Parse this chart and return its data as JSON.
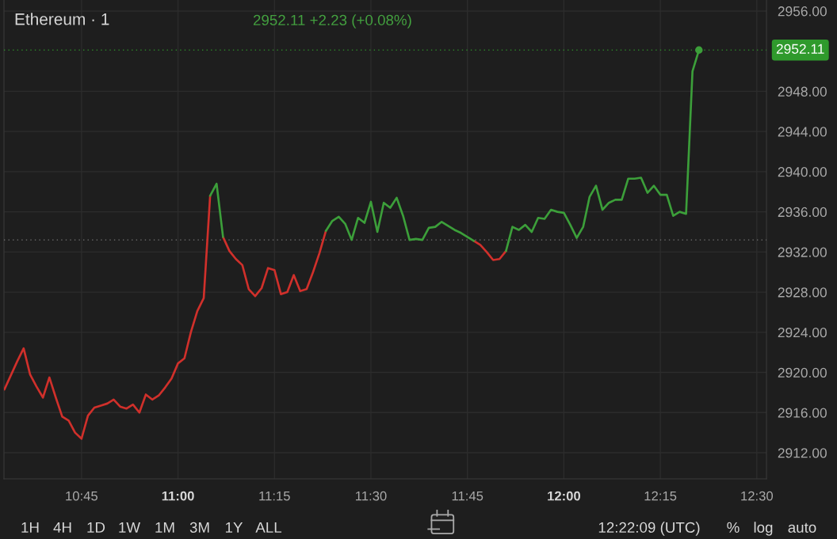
{
  "chart_data": {
    "type": "line",
    "title": "Ethereum · 1",
    "subtitle": "2952.11 +2.23 (+0.08%)",
    "x": [
      10.55,
      10.5667,
      10.5833,
      10.6,
      10.6167,
      10.6333,
      10.65,
      10.6667,
      10.6833,
      10.7,
      10.7167,
      10.7333,
      10.75,
      10.7667,
      10.7833,
      10.8,
      10.8167,
      10.8333,
      10.85,
      10.8667,
      10.8833,
      10.9,
      10.9167,
      10.9333,
      10.95,
      10.9667,
      10.9833,
      11,
      11.0167,
      11.0333,
      11.05,
      11.0667,
      11.0833,
      11.1,
      11.1167,
      11.1333,
      11.15,
      11.1667,
      11.1833,
      11.2,
      11.2167,
      11.2333,
      11.25,
      11.2667,
      11.2833,
      11.3,
      11.3167,
      11.3333,
      11.35,
      11.3667,
      11.3833,
      11.4,
      11.4167,
      11.4333,
      11.45,
      11.4667,
      11.4833,
      11.5,
      11.5167,
      11.5333,
      11.55,
      11.5667,
      11.5833,
      11.6,
      11.6167,
      11.6333,
      11.65,
      11.6667,
      11.6833,
      11.7,
      11.7167,
      11.7333,
      11.75,
      11.7667,
      11.7833,
      11.8,
      11.8167,
      11.8333,
      11.85,
      11.8667,
      11.8833,
      11.9,
      11.9167,
      11.9333,
      11.95,
      11.9667,
      11.9833,
      12,
      12.0167,
      12.0333,
      12.05,
      12.0667,
      12.0833,
      12.1,
      12.1167,
      12.1333,
      12.15,
      12.1667,
      12.1833,
      12.2,
      12.2167,
      12.2333,
      12.25,
      12.2667,
      12.2833,
      12.3,
      12.3167,
      12.3333,
      12.35
    ],
    "series": [
      {
        "color": "#d0302b",
        "values": [
          2918.3,
          2919.7,
          2921.1,
          2922.4,
          2919.8,
          2918.6,
          2917.5,
          2919.5,
          2917.5,
          2915.6,
          2915.2,
          2914.0,
          2913.4,
          2915.7,
          2916.5,
          2916.7,
          2916.9,
          2917.3,
          2916.6,
          2916.4,
          2916.8,
          2916.0,
          2917.8,
          2917.3,
          2917.7,
          2918.5,
          2919.4,
          2920.9,
          2921.4,
          2924.0,
          2926.1,
          2927.4,
          2937.6,
          null,
          2933.5,
          2932.1,
          2931.3,
          2930.7,
          2928.3,
          2927.6,
          2928.4,
          2930.4,
          2930.2,
          2927.8,
          2928.0,
          2929.7,
          2928.1,
          2928.3,
          2930.0,
          2931.9,
          2934.1,
          null,
          null,
          null,
          null,
          null,
          null,
          null,
          null,
          null,
          null,
          null,
          null,
          null,
          null,
          null,
          null,
          null,
          null,
          null,
          null,
          null,
          null,
          2933.1,
          2932.7,
          2932.0,
          2931.2,
          2931.3,
          2932.1,
          null,
          null,
          null,
          null,
          null,
          null,
          null,
          null,
          null,
          null,
          null,
          null,
          null,
          null,
          null,
          null,
          null,
          null,
          null,
          null,
          null,
          null,
          null,
          null,
          null,
          null,
          null,
          null,
          null,
          null
        ]
      },
      {
        "color": "#3c9f3a",
        "values": [
          null,
          null,
          null,
          null,
          null,
          null,
          null,
          null,
          null,
          null,
          null,
          null,
          null,
          null,
          null,
          null,
          null,
          null,
          null,
          null,
          null,
          null,
          null,
          null,
          null,
          null,
          null,
          null,
          null,
          null,
          null,
          null,
          2937.6,
          2938.8,
          2933.5,
          null,
          null,
          null,
          null,
          null,
          null,
          null,
          null,
          null,
          null,
          null,
          null,
          null,
          null,
          null,
          2934.1,
          2935.1,
          2935.5,
          2934.8,
          2933.2,
          2935.4,
          2934.9,
          2937.0,
          2934.0,
          2936.9,
          2936.4,
          2937.4,
          2935.6,
          2933.2,
          2933.3,
          2933.2,
          2934.4,
          2934.5,
          2935.0,
          2934.6,
          2934.2,
          2933.9,
          2933.5,
          2933.1,
          null,
          null,
          null,
          null,
          2932.1,
          2934.5,
          2934.2,
          2934.7,
          2934.0,
          2935.4,
          2935.3,
          2936.2,
          2936.0,
          2935.9,
          2934.7,
          2933.4,
          2934.5,
          2937.5,
          2938.6,
          2936.2,
          2936.9,
          2937.2,
          2937.2,
          2939.3,
          2939.3,
          2939.4,
          2937.9,
          2938.6,
          2937.7,
          2937.7,
          2935.6,
          2936.0,
          2935.8,
          2950.0,
          2952.11
        ]
      },
      {
        "type": "scatter",
        "x": [
          12.35
        ],
        "values": [
          2952.11
        ],
        "color": "#3c9f3a"
      }
    ],
    "xlim": [
      10.549,
      12.525
    ],
    "xticks": [
      {
        "value": 10.75,
        "label": "10:45"
      },
      {
        "value": 11,
        "label": "11:00"
      },
      {
        "value": 11.25,
        "label": "11:15"
      },
      {
        "value": 11.5,
        "label": "11:30"
      },
      {
        "value": 11.75,
        "label": "11:45"
      },
      {
        "value": 12,
        "label": "12:00"
      },
      {
        "value": 12.25,
        "label": "12:15"
      },
      {
        "value": 12.5,
        "label": "12:30"
      }
    ],
    "ylim": [
      2909.4,
      2957.1
    ],
    "yticks": [
      {
        "value": 2912,
        "label": "2912.00"
      },
      {
        "value": 2916,
        "label": "2916.00"
      },
      {
        "value": 2920,
        "label": "2920.00"
      },
      {
        "value": 2924,
        "label": "2924.00"
      },
      {
        "value": 2928,
        "label": "2928.00"
      },
      {
        "value": 2932,
        "label": "2932.00"
      },
      {
        "value": 2936,
        "label": "2936.00"
      },
      {
        "value": 2940,
        "label": "2940.00"
      },
      {
        "value": 2944,
        "label": "2944.00"
      },
      {
        "value": 2948,
        "label": "2948.00"
      },
      {
        "value": 2956,
        "label": "2956.00"
      }
    ],
    "ref_lines": [
      {
        "axis": "y",
        "value": 2933.2,
        "line_style": "dotted",
        "color": "#8a8a8a"
      },
      {
        "axis": "y",
        "value": 2952.11,
        "label": "2952.11",
        "line_style": "dotted",
        "color": "#2f9a2c"
      }
    ],
    "grid": true,
    "line_style": "solid",
    "annotations": [
      "1H",
      "4H",
      "1D",
      "1W",
      "1M",
      "3M",
      "1Y",
      "ALL",
      "12:22:09 (UTC)",
      "%",
      "log",
      "auto"
    ]
  }
}
